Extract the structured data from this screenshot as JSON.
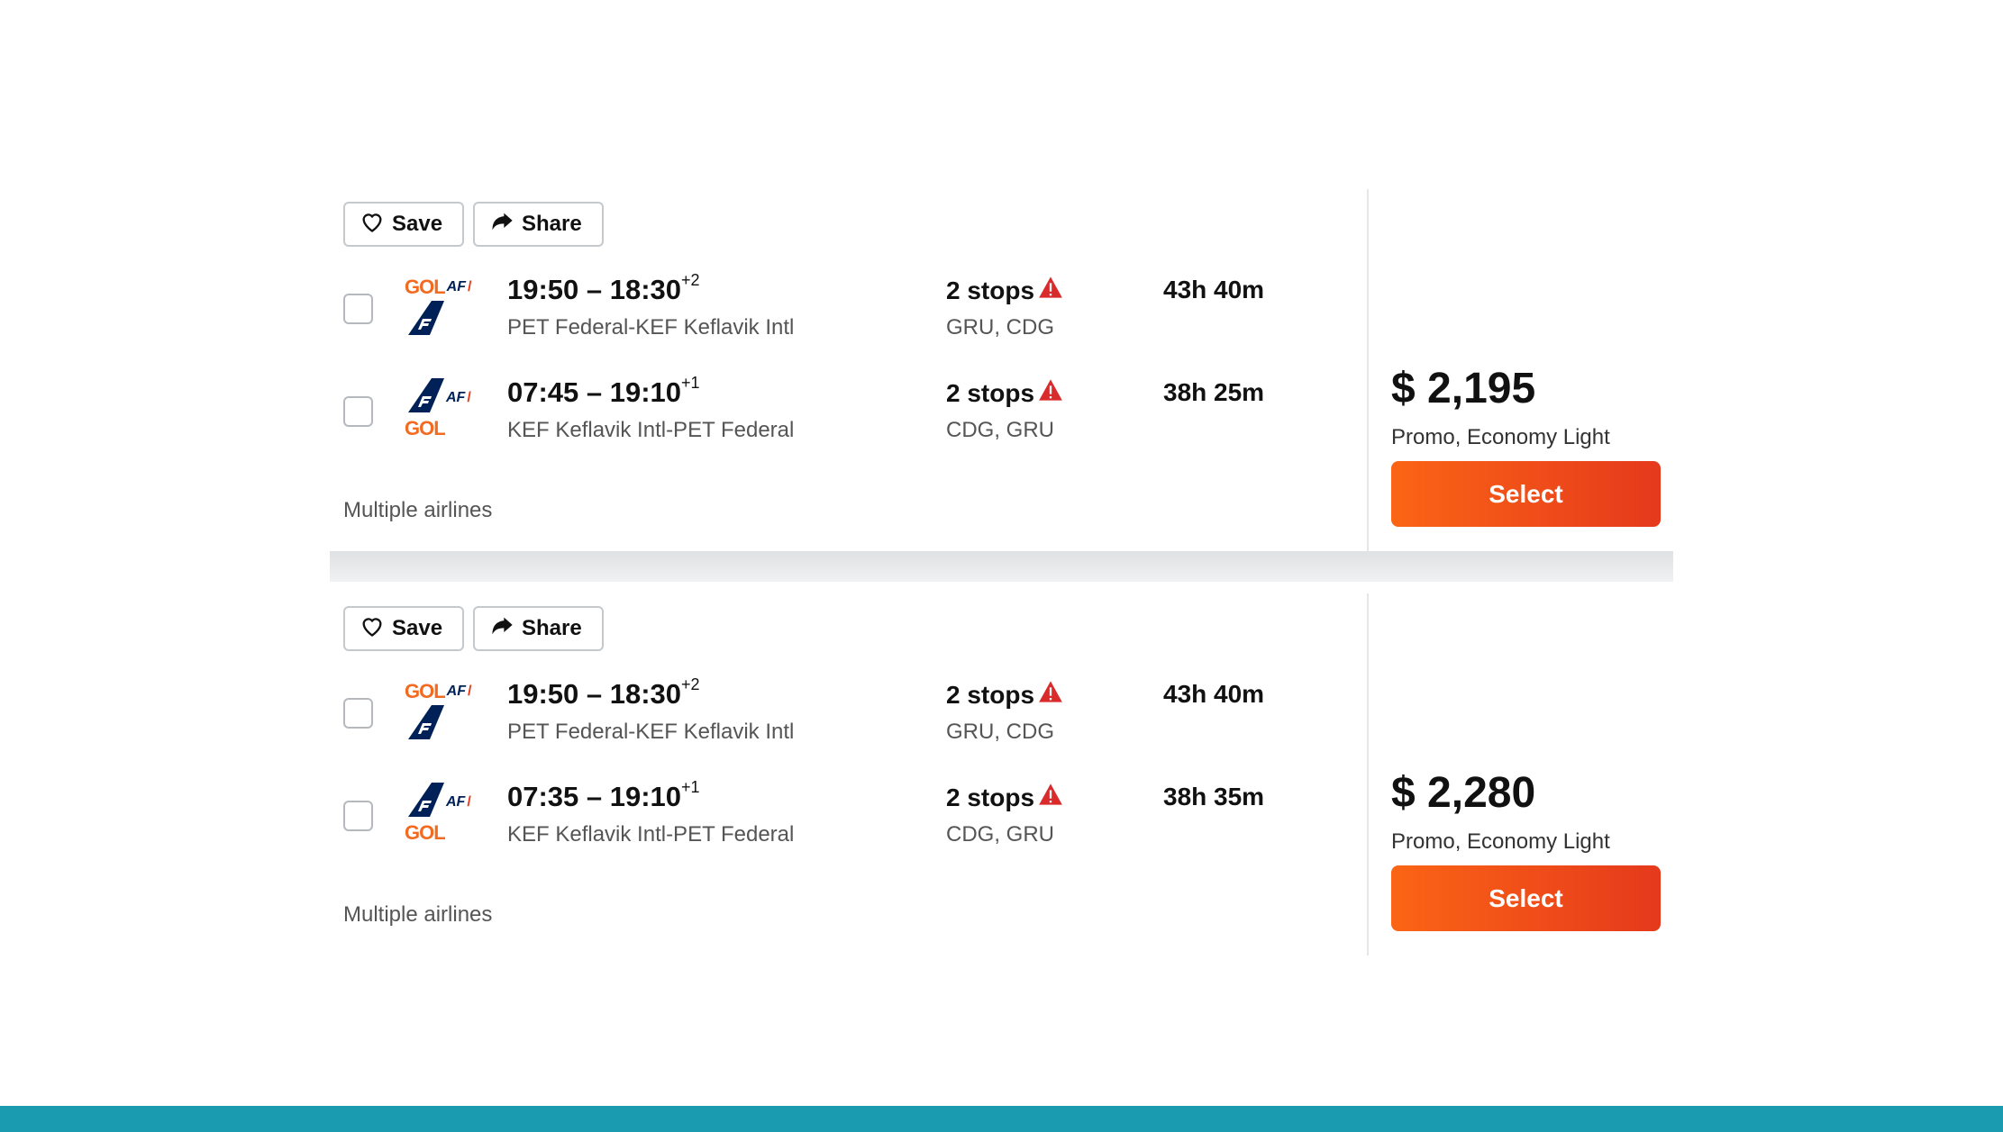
{
  "colors": {
    "accent": "#fb6515",
    "footer": "#1a9bb0",
    "warning": "#d92b2b",
    "gol": "#f26b21",
    "af_blue": "#002157"
  },
  "results": [
    {
      "save_label": "Save",
      "share_label": "Share",
      "legs": [
        {
          "times": "19:50 – 18:30",
          "day_offset": "+2",
          "route": "PET Federal-KEF Keflavik Intl",
          "stops": "2 stops",
          "via": "GRU, CDG",
          "duration": "43h 40m",
          "logos": "gol-af"
        },
        {
          "times": "07:45 – 19:10",
          "day_offset": "+1",
          "route": "KEF Keflavik Intl-PET Federal",
          "stops": "2 stops",
          "via": "CDG, GRU",
          "duration": "38h 25m",
          "logos": "af-gol"
        }
      ],
      "airlines": "Multiple airlines",
      "price": "$ 2,195",
      "fare": "Promo, Economy Light",
      "select_label": "Select"
    },
    {
      "save_label": "Save",
      "share_label": "Share",
      "legs": [
        {
          "times": "19:50 – 18:30",
          "day_offset": "+2",
          "route": "PET Federal-KEF Keflavik Intl",
          "stops": "2 stops",
          "via": "GRU, CDG",
          "duration": "43h 40m",
          "logos": "gol-af"
        },
        {
          "times": "07:35 – 19:10",
          "day_offset": "+1",
          "route": "KEF Keflavik Intl-PET Federal",
          "stops": "2 stops",
          "via": "CDG, GRU",
          "duration": "38h 35m",
          "logos": "af-gol"
        }
      ],
      "airlines": "Multiple airlines",
      "price": "$ 2,280",
      "fare": "Promo, Economy Light",
      "select_label": "Select"
    }
  ],
  "logo_text": {
    "gol": "GOL",
    "af": "AF"
  }
}
